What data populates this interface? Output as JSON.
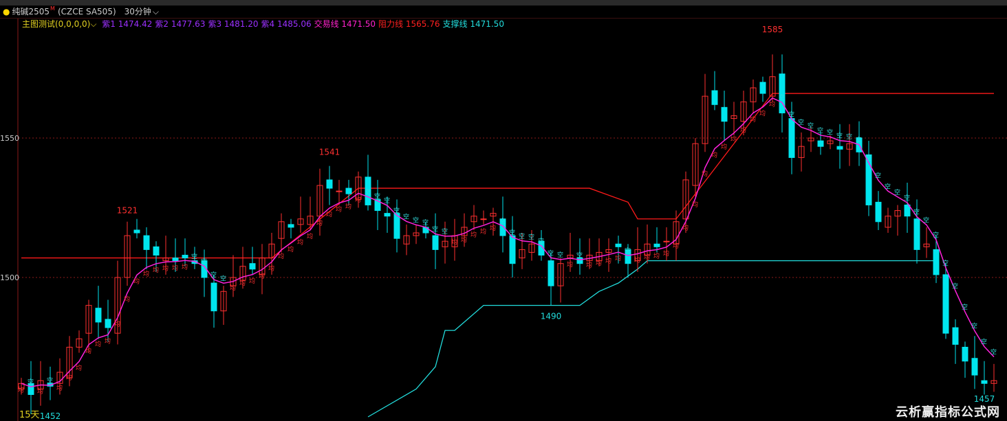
{
  "header": {
    "symbol": "纯碱2505",
    "symbol_mark": "M",
    "code": "(CZCE SA505)",
    "period": "30分钟"
  },
  "legend": {
    "indicator": "主图测试(0,0,0,0)",
    "items": [
      {
        "label": "紫1",
        "value": "1474.42",
        "color": "#9b30ff"
      },
      {
        "label": "紫2",
        "value": "1477.63",
        "color": "#9b30ff"
      },
      {
        "label": "紫3",
        "value": "1481.20",
        "color": "#9b30ff"
      },
      {
        "label": "紫4",
        "value": "1485.06",
        "color": "#9b30ff"
      },
      {
        "label": "交易线",
        "value": "1471.50",
        "color": "#ff22cc"
      },
      {
        "label": "阻力线",
        "value": "1565.76",
        "color": "#ff2020"
      },
      {
        "label": "支撑线",
        "value": "1471.50",
        "color": "#22dddd"
      }
    ]
  },
  "bottom_label": "15天",
  "watermark": "云析赢指标公式网",
  "chart_data": {
    "type": "candlestick",
    "yticks": [
      1550,
      1500
    ],
    "grid": true,
    "colors": {
      "up": "#ff3030",
      "down": "#00e5ee",
      "ma": "#ff22dd",
      "resistance": "#ff1a1a",
      "support": "#22dddd",
      "marker_up": "#ff3030",
      "marker_down": "#33dddd"
    },
    "markers": {
      "up": "均",
      "down": "空"
    },
    "closes": [
      1462,
      1458,
      1463,
      1461,
      1466,
      1475,
      1478,
      1490,
      1484,
      1482,
      1500,
      1515,
      1516,
      1510,
      1508,
      1507,
      1506,
      1507,
      1505,
      1500,
      1488,
      1495,
      1500,
      1504,
      1503,
      1507,
      1512,
      1520,
      1518,
      1521,
      1522,
      1533,
      1532,
      1531,
      1530,
      1536,
      1526,
      1524,
      1522,
      1514,
      1515,
      1516,
      1516,
      1510,
      1513,
      1515,
      1518,
      1522,
      1521,
      1523,
      1515,
      1505,
      1510,
      1512,
      1508,
      1497,
      1505,
      1508,
      1505,
      1508,
      1509,
      1510,
      1511,
      1505,
      1510,
      1512,
      1511,
      1513,
      1520,
      1535,
      1548,
      1565,
      1562,
      1556,
      1558,
      1563,
      1568,
      1566,
      1572,
      1559,
      1543,
      1547,
      1550,
      1547,
      1549,
      1546,
      1548,
      1545,
      1526,
      1520,
      1522,
      1524,
      1522,
      1510,
      1512,
      1501,
      1480,
      1476,
      1470,
      1465,
      1462,
      1463
    ],
    "resistance": [
      [
        0,
        1507
      ],
      [
        26,
        1507
      ],
      [
        35,
        1532
      ],
      [
        59,
        1532
      ],
      [
        63,
        1527
      ],
      [
        64,
        1521
      ],
      [
        68,
        1521
      ],
      [
        78,
        1566
      ],
      [
        101,
        1566
      ]
    ],
    "support": [
      [
        36,
        1450
      ],
      [
        40,
        1458
      ],
      [
        41,
        1460
      ],
      [
        43,
        1468
      ],
      [
        44,
        1481
      ],
      [
        45,
        1481
      ],
      [
        48,
        1490
      ],
      [
        58,
        1490
      ],
      [
        60,
        1495
      ],
      [
        62,
        1498
      ],
      [
        64,
        1503
      ],
      [
        65,
        1506
      ],
      [
        95,
        1506
      ]
    ],
    "annotations": [
      {
        "label": "1452",
        "color": "#22dddd",
        "index": 3,
        "price": 1450
      },
      {
        "label": "1521",
        "color": "#ff3030",
        "index": 11,
        "price": 1522
      },
      {
        "label": "1541",
        "color": "#ff3030",
        "index": 32,
        "price": 1543
      },
      {
        "label": "1490",
        "color": "#22dddd",
        "index": 55,
        "price": 1488
      },
      {
        "label": "1585",
        "color": "#ff3030",
        "index": 78,
        "price": 1587
      },
      {
        "label": "1457",
        "color": "#22dddd",
        "index": 100,
        "price": 1454
      }
    ]
  }
}
